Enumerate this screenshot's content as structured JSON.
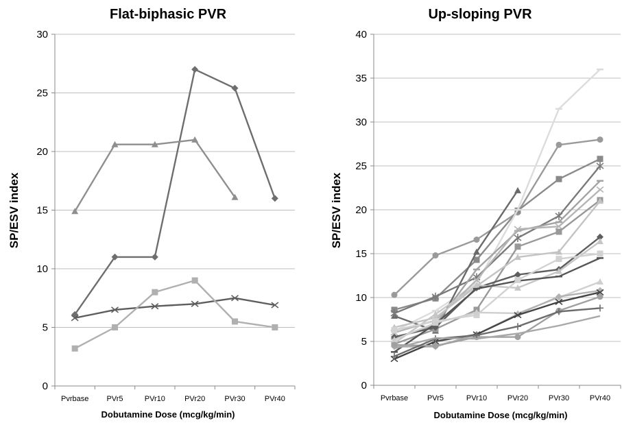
{
  "chart_data": [
    {
      "type": "line",
      "title": "Flat-biphasic PVR",
      "xlabel": "Dobutamine Dose (mcg/kg/min)",
      "ylabel": "SP/ESV index",
      "categories": [
        "Pvrbase",
        "PVr5",
        "PVr10",
        "PVr20",
        "PVr30",
        "PVr40"
      ],
      "ylim": [
        0,
        30
      ],
      "yticks": [
        0,
        5,
        10,
        15,
        20,
        25,
        30
      ],
      "grid": "horizontal",
      "legend": "none",
      "series": [
        {
          "values": [
            6.1,
            11.0,
            11.0,
            27.0,
            25.4,
            16.0
          ],
          "color": "#6e6e6e",
          "marker": "diamond"
        },
        {
          "values": [
            14.9,
            20.6,
            20.6,
            21.0,
            16.1,
            null
          ],
          "color": "#8f8f8f",
          "marker": "triangle"
        },
        {
          "values": [
            5.8,
            6.5,
            6.8,
            7.0,
            7.5,
            6.9
          ],
          "color": "#5d5d5d",
          "marker": "x"
        },
        {
          "values": [
            3.2,
            5.0,
            8.0,
            9.0,
            5.5,
            5.0
          ],
          "color": "#b0b0b0",
          "marker": "square"
        }
      ]
    },
    {
      "type": "line",
      "title": "Up-sloping PVR",
      "xlabel": "Dobutamine Dose (mcg/kg/min)",
      "ylabel": "SP/ESV index",
      "categories": [
        "Pvrbase",
        "PVr5",
        "PVr10",
        "PVr20",
        "PVr30",
        "PVr40"
      ],
      "ylim": [
        0,
        40
      ],
      "yticks": [
        0,
        5,
        10,
        15,
        20,
        25,
        30,
        35,
        40
      ],
      "grid": "horizontal",
      "legend": "none",
      "series": [
        {
          "values": [
            10.3,
            14.8,
            16.6,
            19.7,
            27.4,
            28.0
          ],
          "color": "#9a9a9a",
          "marker": "circle"
        },
        {
          "values": [
            8.6,
            9.9,
            14.3,
            19.9,
            23.5,
            25.8
          ],
          "color": "#8a8a8a",
          "marker": "square"
        },
        {
          "values": [
            6.2,
            8.5,
            11.6,
            20.0,
            31.5,
            36.0
          ],
          "color": "#dcdcdc",
          "marker": "dash"
        },
        {
          "values": [
            7.9,
            6.2,
            15.2,
            22.2,
            null,
            null
          ],
          "color": "#6a6a6a",
          "marker": "triangle"
        },
        {
          "values": [
            8.2,
            10.1,
            12.3,
            16.8,
            19.3,
            25.0
          ],
          "color": "#7a7a7a",
          "marker": "star"
        },
        {
          "values": [
            5.3,
            6.9,
            13.2,
            17.6,
            18.6,
            23.3
          ],
          "color": "#a3a3a3",
          "marker": "dash"
        },
        {
          "values": [
            6.0,
            7.4,
            12.0,
            17.8,
            18.1,
            22.3
          ],
          "color": "#b5b5b5",
          "marker": "x"
        },
        {
          "values": [
            4.7,
            6.4,
            8.6,
            15.8,
            17.5,
            21.1
          ],
          "color": "#999999",
          "marker": "square"
        },
        {
          "values": [
            6.6,
            7.7,
            11.3,
            14.6,
            15.2,
            21.0
          ],
          "color": "#c3c3c3",
          "marker": "triangle"
        },
        {
          "values": [
            5.5,
            6.6,
            11.1,
            12.6,
            13.2,
            16.9
          ],
          "color": "#5e5e5e",
          "marker": "diamond"
        },
        {
          "values": [
            4.8,
            8.1,
            11.4,
            11.1,
            13.0,
            16.4
          ],
          "color": "#c6c6c6",
          "marker": "triangle"
        },
        {
          "values": [
            3.8,
            7.0,
            11.0,
            11.9,
            12.4,
            14.5
          ],
          "color": "#555555",
          "marker": "dash"
        },
        {
          "values": [
            6.3,
            7.3,
            8.0,
            12.0,
            14.4,
            15.0
          ],
          "color": "#d2d2d2",
          "marker": "square"
        },
        {
          "values": [
            5.2,
            7.1,
            8.3,
            8.2,
            10.0,
            11.8
          ],
          "color": "#cfcfcf",
          "marker": "triangle"
        },
        {
          "values": [
            4.4,
            4.4,
            5.8,
            8.1,
            10.1,
            10.8
          ],
          "color": "#b2b2b2",
          "marker": "diamond"
        },
        {
          "values": [
            3.0,
            5.0,
            5.8,
            8.0,
            9.5,
            10.6
          ],
          "color": "#444444",
          "marker": "x"
        },
        {
          "values": [
            4.6,
            4.5,
            5.5,
            5.5,
            8.5,
            10.1
          ],
          "color": "#a0a0a0",
          "marker": "circle"
        },
        {
          "values": [
            3.3,
            5.3,
            5.7,
            6.7,
            8.4,
            8.8
          ],
          "color": "#6c6c6c",
          "marker": "plus"
        },
        {
          "values": [
            4.2,
            5.4,
            5.3,
            5.9,
            6.8,
            7.9
          ],
          "color": "#a8a8a8",
          "marker": "none"
        }
      ]
    }
  ]
}
